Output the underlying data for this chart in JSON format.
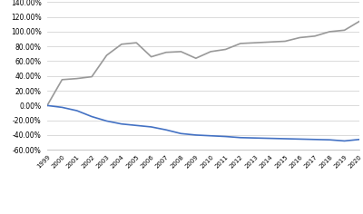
{
  "years": [
    1999,
    2000,
    2001,
    2002,
    2003,
    2004,
    2005,
    2006,
    2007,
    2008,
    2009,
    2010,
    2011,
    2012,
    2013,
    2014,
    2015,
    2016,
    2017,
    2018,
    2019,
    2020
  ],
  "mental_disorders": [
    0.0,
    35.0,
    36.5,
    39.0,
    68.0,
    83.0,
    85.0,
    66.0,
    72.0,
    73.0,
    64.0,
    73.0,
    76.0,
    84.0,
    85.0,
    86.0,
    87.0,
    92.0,
    94.0,
    100.0,
    102.0,
    114.0
  ],
  "non_mental": [
    0.0,
    -2.5,
    -7.0,
    -15.0,
    -21.0,
    -25.0,
    -27.0,
    -29.0,
    -33.0,
    -38.0,
    -40.0,
    -41.0,
    -42.0,
    -43.5,
    -44.0,
    -44.5,
    -45.0,
    -45.5,
    -46.0,
    -46.5,
    -48.0,
    -46.0
  ],
  "mental_color": "#999999",
  "non_mental_color": "#4472c4",
  "background_color": "#ffffff",
  "grid_color": "#d4d4d4",
  "ylim": [
    -60,
    140
  ],
  "yticks": [
    -60,
    -40,
    -20,
    0,
    20,
    40,
    60,
    80,
    100,
    120,
    140
  ]
}
